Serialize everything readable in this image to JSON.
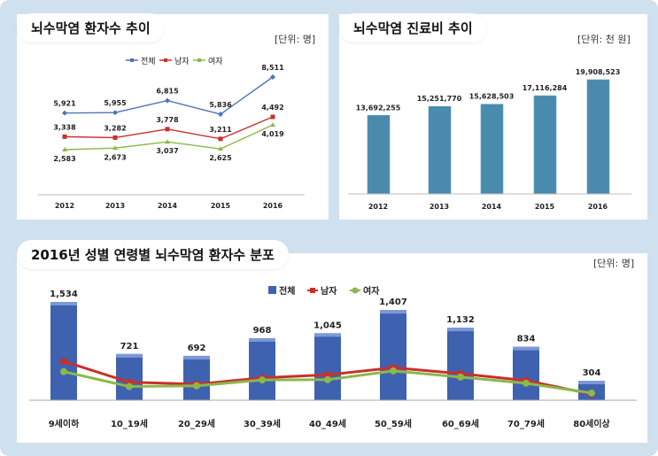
{
  "charts": {
    "patients": {
      "title": "뇌수막염 환자수 추이",
      "unit": "[단위: 명]"
    },
    "costs": {
      "title": "뇌수막염 진료비 추이",
      "unit": "[단위: 천 원]"
    },
    "distribution": {
      "title": "2016년 성별 연령별 뇌수막염 환자수 분포",
      "unit": "[단위: 명]"
    }
  },
  "colors": {
    "total_line": "#4f74b8",
    "male": "#c8302c",
    "female": "#8cb84a",
    "bar": "#4a8aad",
    "bar3d": "#3f62b0"
  },
  "chart_data": [
    {
      "type": "line",
      "title": "뇌수막염 환자수 추이",
      "categories": [
        "2012",
        "2013",
        "2014",
        "2015",
        "2016"
      ],
      "series": [
        {
          "name": "전체",
          "values": [
            5921,
            5955,
            6815,
            5836,
            8511
          ],
          "labels": [
            "5,921",
            "5,955",
            "6,815",
            "5,836",
            "8,511"
          ]
        },
        {
          "name": "남자",
          "values": [
            3338,
            3282,
            3778,
            3211,
            4492
          ],
          "labels": [
            "3,338",
            "3,282",
            "3,778",
            "3,211",
            "4,492"
          ]
        },
        {
          "name": "여자",
          "values": [
            2583,
            2673,
            3037,
            2625,
            4019
          ],
          "labels": [
            "2,583",
            "2,673",
            "3,037",
            "2,625",
            "4,019"
          ]
        }
      ],
      "legend": "top-center",
      "grid": false
    },
    {
      "type": "bar",
      "title": "뇌수막염 진료비 추이",
      "categories": [
        "2012",
        "2013",
        "2014",
        "2015",
        "2016"
      ],
      "values": [
        13692255,
        15251770,
        15628503,
        17116284,
        19908523
      ],
      "labels": [
        "13,692,255",
        "15,251,770",
        "15,628,503",
        "17,116,284",
        "19,908,523"
      ],
      "grid": false
    },
    {
      "type": "bar",
      "title": "2016년 성별 연령별 뇌수막염 환자수 분포",
      "categories": [
        "9세이하",
        "10_19세",
        "20_29세",
        "30_39세",
        "40_49세",
        "50_59세",
        "60_69세",
        "70_79세",
        "80세이상"
      ],
      "series": [
        {
          "name": "전체",
          "kind": "bar",
          "values": [
            1534,
            721,
            692,
            968,
            1045,
            1407,
            1132,
            834,
            304
          ],
          "labels": [
            "1,534",
            "721",
            "692",
            "968",
            "1,045",
            "1,407",
            "1,132",
            "834",
            "304"
          ]
        },
        {
          "name": "남자",
          "kind": "line",
          "values": [
            885,
            410,
            365,
            508,
            578,
            740,
            605,
            448,
            140
          ]
        },
        {
          "name": "여자",
          "kind": "line",
          "values": [
            650,
            311,
            327,
            460,
            467,
            667,
            527,
            386,
            164
          ]
        }
      ],
      "legend": "top-center",
      "grid": false
    }
  ]
}
